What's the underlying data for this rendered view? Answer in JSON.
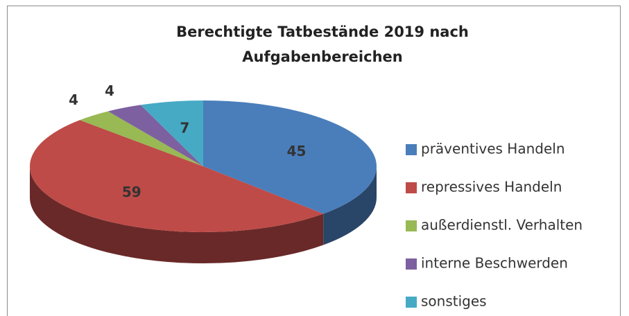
{
  "chart_data": {
    "type": "pie",
    "title": "Berechtigte Tatbestände 2019 nach Aufgabenbereichen",
    "categories": [
      "präventives Handeln",
      "repressives Handeln",
      "außerdienstl. Verhalten",
      "interne Beschwerden",
      "sonstiges"
    ],
    "values": [
      45,
      59,
      4,
      4,
      7
    ],
    "colors": [
      "#4a7ebb",
      "#be4b48",
      "#98b954",
      "#7d60a0",
      "#46aac5"
    ],
    "legend": "right",
    "style": "3d"
  }
}
